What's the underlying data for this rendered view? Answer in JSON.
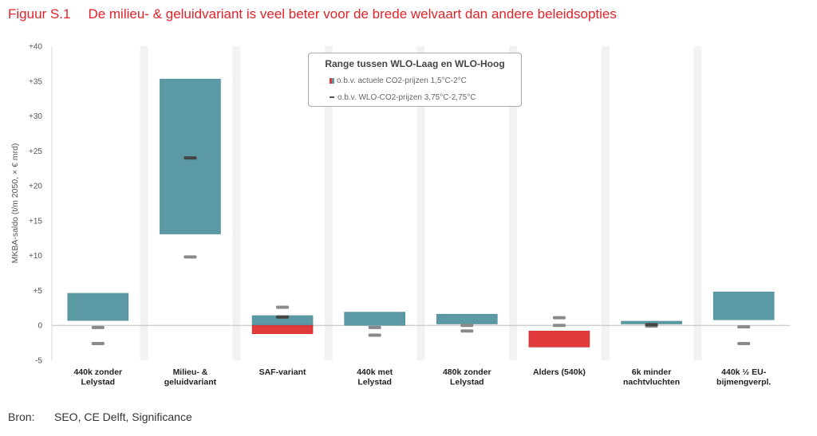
{
  "figure": {
    "number": "Figuur S.1",
    "title": "De milieu- & geluidvariant is veel beter voor de brede welvaart dan andere beleidsopties"
  },
  "source": {
    "label": "Bron:",
    "text": "SEO, CE Delft, Significance"
  },
  "colors": {
    "teal": "#5b9aa5",
    "red": "#e03a3a",
    "marker": "#8a8a8a",
    "marker_dark": "#444444",
    "band": "#f2f2f2"
  },
  "chart_data": {
    "type": "bar",
    "ylabel": "MKBA-saldo (t/m 2050, × € mrd)",
    "ylim": [
      -5,
      40
    ],
    "yticks": [
      -5,
      0,
      5,
      10,
      15,
      20,
      25,
      30,
      35,
      40
    ],
    "ytick_labels": [
      "-5",
      "0",
      "+5",
      "+10",
      "+15",
      "+20",
      "+25",
      "+30",
      "+35",
      "+40"
    ],
    "legend": {
      "title": "Range tussen WLO-Laag en WLO-Hoog",
      "position": "top-center",
      "entries": [
        "o.b.v. actuele CO2-prijzen 1,5°C-2°C",
        "o.b.v. WLO-CO2-prijzen 3,75°C-2,75°C"
      ]
    },
    "categories": [
      {
        "label": [
          "440k zonder",
          "Lelystad"
        ],
        "range": [
          0.7,
          4.6
        ],
        "wlo_markers": [
          -0.3,
          -2.6
        ],
        "dark_markers": []
      },
      {
        "label": [
          "Milieu- &",
          "geluidvariant"
        ],
        "range": [
          13.1,
          35.3
        ],
        "wlo_markers": [
          9.8
        ],
        "dark_markers": [
          24.0
        ]
      },
      {
        "label": [
          "SAF-variant"
        ],
        "range": [
          -1.2,
          1.4
        ],
        "wlo_markers": [
          2.6
        ],
        "dark_markers": [
          1.2
        ]
      },
      {
        "label": [
          "440k met",
          "Lelystad"
        ],
        "range": [
          0.0,
          1.9
        ],
        "wlo_markers": [
          -0.3,
          -1.4
        ],
        "dark_markers": []
      },
      {
        "label": [
          "480k zonder",
          "Lelystad"
        ],
        "range": [
          0.2,
          1.6
        ],
        "wlo_markers": [
          0.0,
          -0.8
        ],
        "dark_markers": []
      },
      {
        "label": [
          "Alders (540k)"
        ],
        "range": [
          -3.1,
          -0.8
        ],
        "wlo_markers": [
          1.1,
          0.0
        ],
        "dark_markers": []
      },
      {
        "label": [
          "6k minder",
          "nachtvluchten"
        ],
        "range": [
          0.2,
          0.6
        ],
        "wlo_markers": [
          -0.1
        ],
        "dark_markers": [
          0.1
        ]
      },
      {
        "label": [
          "440k ½ EU-",
          "bijmengverpl."
        ],
        "range": [
          0.8,
          4.8
        ],
        "wlo_markers": [
          -0.2,
          -2.6
        ],
        "dark_markers": []
      }
    ]
  }
}
